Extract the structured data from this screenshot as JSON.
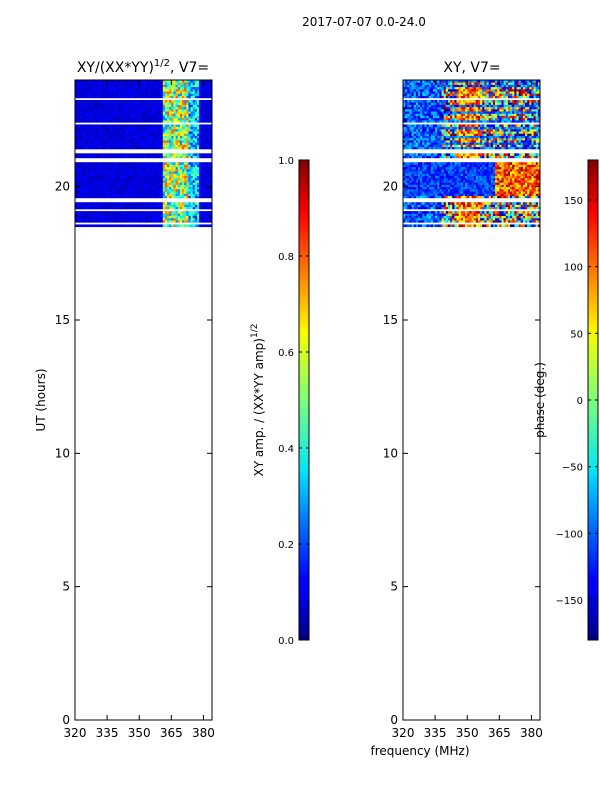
{
  "figure_title": "2017-07-07 0.0-24.0",
  "shared_xlabel": "frequency (MHz)",
  "chart_data": [
    {
      "type": "heatmap",
      "title": "XY/(XX*YY)",
      "title_sup": "1/2",
      "title_suffix": ", V7=",
      "xlabel": "",
      "ylabel": "UT (hours)",
      "xlim": [
        320,
        384
      ],
      "ylim": [
        0,
        24
      ],
      "xticks": [
        320,
        335,
        350,
        365,
        380
      ],
      "yticks": [
        0,
        5,
        10,
        15,
        20
      ],
      "data_extent_hours": [
        18.5,
        24
      ],
      "colorbar": {
        "label": "XY amp. / (XX*YY amp)",
        "label_sup": "1/2",
        "range": [
          0,
          1
        ],
        "ticks": [
          "0.0",
          "0.2",
          "0.4",
          "0.6",
          "0.8",
          "1.0"
        ]
      }
    },
    {
      "type": "heatmap",
      "title": "XY, V7=",
      "xlabel": "frequency (MHz)",
      "ylabel": "",
      "xlim": [
        320,
        384
      ],
      "ylim": [
        0,
        24
      ],
      "xticks": [
        320,
        335,
        350,
        365,
        380
      ],
      "yticks": [
        0,
        5,
        10,
        15,
        20
      ],
      "data_extent_hours": [
        18.5,
        24
      ],
      "colorbar": {
        "label": "phase (deg.)",
        "range": [
          -180,
          180
        ],
        "ticks": [
          "-150",
          "-100",
          "-50",
          "0",
          "50",
          "100",
          "150"
        ]
      }
    }
  ]
}
